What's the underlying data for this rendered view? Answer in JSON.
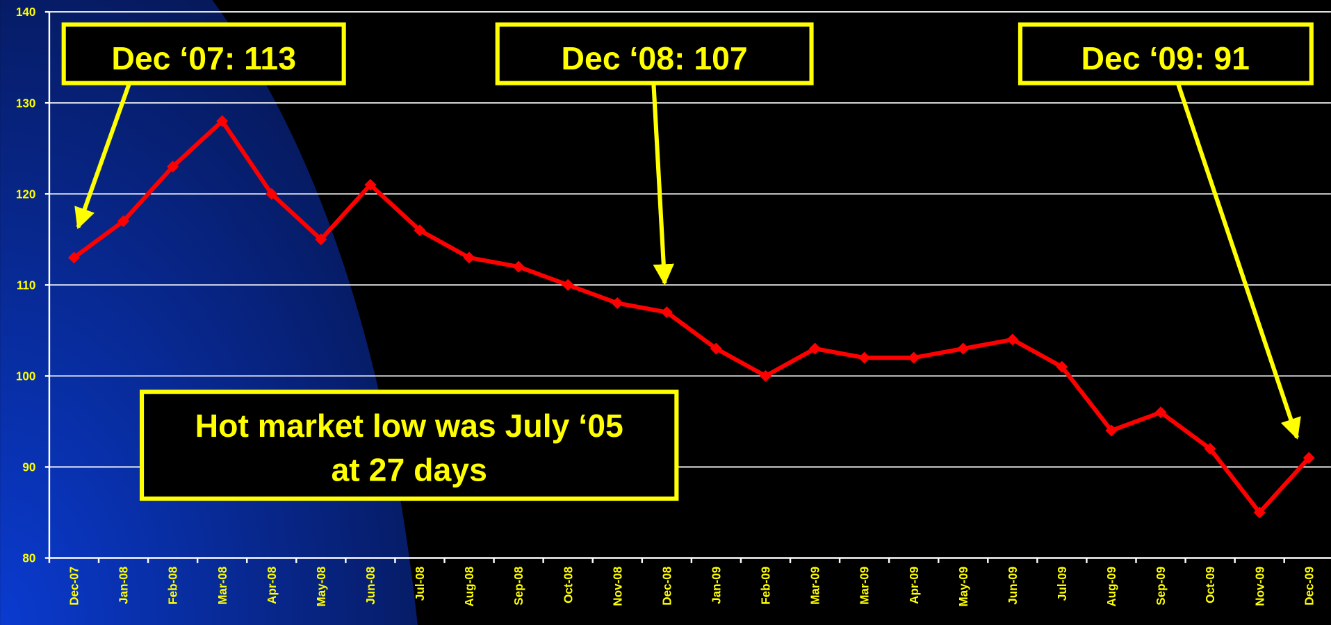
{
  "chart_data": {
    "type": "line",
    "categories": [
      "Dec-07",
      "Jan-08",
      "Feb-08",
      "Mar-08",
      "Apr-08",
      "May-08",
      "Jun-08",
      "Jul-08",
      "Aug-08",
      "Sep-08",
      "Oct-08",
      "Nov-08",
      "Dec-08",
      "Jan-09",
      "Feb-09",
      "Mar-09",
      "Mar-09",
      "Apr-09",
      "May-09",
      "Jun-09",
      "Jul-09",
      "Aug-09",
      "Sep-09",
      "Oct-09",
      "Nov-09",
      "Dec-09"
    ],
    "values": [
      113,
      117,
      123,
      128,
      120,
      115,
      121,
      116,
      113,
      112,
      110,
      108,
      107,
      103,
      100,
      103,
      102,
      102,
      103,
      104,
      101,
      94,
      96,
      92,
      85,
      91
    ],
    "color": "#ff0000",
    "ylim": [
      80,
      140
    ],
    "yticks": [
      80,
      90,
      100,
      110,
      120,
      130,
      140
    ],
    "grid": true,
    "annotations": [
      "Dec ‘07: 113",
      "Dec ‘08: 107",
      "Dec ‘09: 91"
    ],
    "callout": [
      "Hot market low was July ‘05",
      "at 27 days"
    ]
  }
}
